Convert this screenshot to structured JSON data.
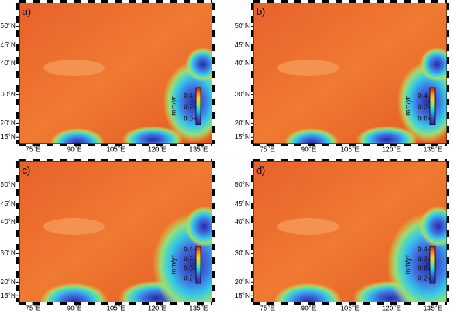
{
  "lon_range": [
    70,
    140
  ],
  "lat_range": [
    12.5,
    55.5
  ],
  "lon_ticks": [
    {
      "value": 75,
      "label": "75°E"
    },
    {
      "value": 90,
      "label": "90°E"
    },
    {
      "value": 105,
      "label": "105°E"
    },
    {
      "value": 120,
      "label": "120°E"
    },
    {
      "value": 135,
      "label": "135°E"
    }
  ],
  "lat_ticks": [
    {
      "value": 50,
      "label": "50°N"
    },
    {
      "value": 45,
      "label": "45°N"
    },
    {
      "value": 40,
      "label": "40°N"
    },
    {
      "value": 30,
      "label": "30°N"
    },
    {
      "value": 20,
      "label": "20°N"
    },
    {
      "value": 15,
      "label": "15°N"
    }
  ],
  "panels": [
    {
      "label": "a)",
      "colorbar": {
        "label": "mm/yr",
        "range": [
          -0.1,
          0.55
        ],
        "ticks": [
          0.4,
          0.2,
          {
            "value": 0,
            "label": "0.0"
          }
        ]
      }
    },
    {
      "label": "b)",
      "colorbar": {
        "label": "mm/yr",
        "range": [
          -0.1,
          0.55
        ],
        "ticks": [
          0.4,
          0.2,
          {
            "value": 0,
            "label": "0.0"
          }
        ]
      }
    },
    {
      "label": "c)",
      "colorbar": {
        "label": "mm/yr",
        "range": [
          -0.3,
          0.47
        ],
        "ticks": [
          0.4,
          0.2,
          {
            "value": 0,
            "label": "0.0"
          },
          -0.2
        ]
      }
    },
    {
      "label": "d)",
      "colorbar": {
        "label": "mm/yr",
        "range": [
          -0.3,
          0.47
        ],
        "ticks": [
          0.4,
          0.2,
          {
            "value": 0,
            "label": "0.0"
          },
          -0.2
        ]
      }
    }
  ]
}
